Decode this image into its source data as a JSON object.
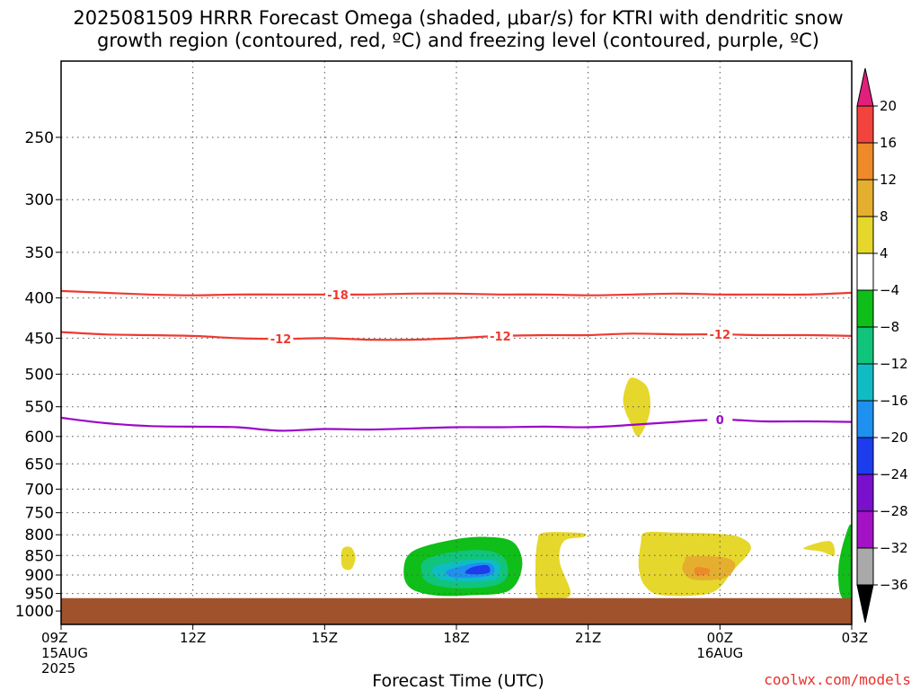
{
  "chart_data": {
    "type": "heatmap",
    "title_line1": "2025081509 HRRR Forecast Omega (shaded, μbar/s) for KTRI with dendritic snow",
    "title_line2": "growth region (contoured, red, ºC) and freezing level (contoured, purple, ºC)",
    "xlabel": "Forecast Time (UTC)",
    "ylabel": "",
    "x_ticks": [
      {
        "hour": 0,
        "label": "09Z",
        "sub": [
          "15AUG",
          "2025"
        ]
      },
      {
        "hour": 3,
        "label": "12Z",
        "sub": []
      },
      {
        "hour": 6,
        "label": "15Z",
        "sub": []
      },
      {
        "hour": 9,
        "label": "18Z",
        "sub": []
      },
      {
        "hour": 12,
        "label": "21Z",
        "sub": []
      },
      {
        "hour": 15,
        "label": "00Z",
        "sub": [
          "16AUG"
        ]
      },
      {
        "hour": 18,
        "label": "03Z",
        "sub": []
      }
    ],
    "xlim": [
      0,
      18
    ],
    "y_ticks": [
      250,
      300,
      350,
      400,
      450,
      500,
      550,
      600,
      650,
      700,
      750,
      800,
      850,
      900,
      950,
      1000
    ],
    "ylim": [
      200,
      1040
    ],
    "y_scale": "log-pressure",
    "grid": true,
    "colorbar": {
      "units": "μbar/s",
      "levels": [
        "20",
        "16",
        "12",
        "8",
        "4",
        "−4",
        "−8",
        "−12",
        "−16",
        "−20",
        "−24",
        "−28",
        "−32",
        "−36"
      ],
      "colors": [
        "#e0207c",
        "#f2443c",
        "#ee8a28",
        "#e6ae2e",
        "#e6d72c",
        "#ffffff",
        "#0fbe18",
        "#10c47c",
        "#10bcc4",
        "#1e90f0",
        "#1c3cee",
        "#7a0fcc",
        "#a412c6",
        "#a9a9a9",
        "#000000"
      ]
    },
    "contours": [
      {
        "kind": "dendritic",
        "label": "-18",
        "color": "#ee3a30",
        "points": [
          [
            0,
            392
          ],
          [
            1,
            394
          ],
          [
            2,
            396
          ],
          [
            3,
            397
          ],
          [
            4,
            396
          ],
          [
            5,
            396
          ],
          [
            6,
            396
          ],
          [
            7,
            396
          ],
          [
            8,
            395
          ],
          [
            9,
            395
          ],
          [
            10,
            396
          ],
          [
            11,
            396
          ],
          [
            12,
            397
          ],
          [
            13,
            396
          ],
          [
            14,
            395
          ],
          [
            15,
            396
          ],
          [
            16,
            396
          ],
          [
            17,
            396
          ],
          [
            18,
            394
          ]
        ],
        "label_hours": [
          6.3
        ]
      },
      {
        "kind": "dendritic",
        "label": "-12",
        "color": "#ee3a30",
        "points": [
          [
            0,
            442
          ],
          [
            1,
            445
          ],
          [
            2,
            446
          ],
          [
            3,
            447
          ],
          [
            4,
            450
          ],
          [
            5,
            451
          ],
          [
            6,
            450
          ],
          [
            7,
            452
          ],
          [
            8,
            452
          ],
          [
            9,
            450
          ],
          [
            10,
            447
          ],
          [
            11,
            446
          ],
          [
            12,
            446
          ],
          [
            13,
            444
          ],
          [
            14,
            445
          ],
          [
            15,
            445
          ],
          [
            16,
            446
          ],
          [
            17,
            446
          ],
          [
            18,
            447
          ]
        ],
        "label_hours": [
          5.0,
          10.0,
          15.0
        ]
      },
      {
        "kind": "freezing",
        "label": "0",
        "color": "#9b08c8",
        "points": [
          [
            0,
            568
          ],
          [
            1,
            577
          ],
          [
            2,
            582
          ],
          [
            3,
            583
          ],
          [
            4,
            584
          ],
          [
            5,
            590
          ],
          [
            6,
            587
          ],
          [
            7,
            588
          ],
          [
            8,
            586
          ],
          [
            9,
            584
          ],
          [
            10,
            584
          ],
          [
            11,
            583
          ],
          [
            12,
            584
          ],
          [
            13,
            580
          ],
          [
            14,
            575
          ],
          [
            15,
            571
          ],
          [
            16,
            574
          ],
          [
            17,
            574
          ],
          [
            18,
            575
          ]
        ],
        "label_hours": [
          15.0
        ]
      }
    ],
    "shaded_regions": [
      {
        "value": "4 to 8",
        "color": "#e6d72c",
        "points": [
          [
            13.0,
            505
          ],
          [
            12.85,
            520
          ],
          [
            12.8,
            545
          ],
          [
            12.95,
            575
          ],
          [
            13.15,
            600
          ],
          [
            13.4,
            560
          ],
          [
            13.35,
            520
          ]
        ]
      },
      {
        "value": "4 to 8",
        "color": "#e6d72c",
        "points": [
          [
            6.4,
            835
          ],
          [
            6.4,
            878
          ],
          [
            6.6,
            885
          ],
          [
            6.7,
            855
          ],
          [
            6.6,
            830
          ]
        ]
      },
      {
        "value": "4 to 8",
        "color": "#e6d72c",
        "points": [
          [
            11.0,
            795
          ],
          [
            11.85,
            796
          ],
          [
            11.9,
            805
          ],
          [
            11.45,
            815
          ],
          [
            11.35,
            865
          ],
          [
            11.6,
            950
          ],
          [
            11.25,
            964
          ],
          [
            10.85,
            960
          ],
          [
            10.8,
            880
          ],
          [
            10.85,
            815
          ]
        ]
      },
      {
        "value": "4 to 8",
        "color": "#e6d72c",
        "points": [
          [
            13.3,
            795
          ],
          [
            14.0,
            795
          ],
          [
            15.0,
            798
          ],
          [
            15.5,
            808
          ],
          [
            15.7,
            835
          ],
          [
            15.3,
            888
          ],
          [
            14.8,
            948
          ],
          [
            13.7,
            955
          ],
          [
            13.3,
            930
          ],
          [
            13.15,
            880
          ],
          [
            13.2,
            820
          ]
        ]
      },
      {
        "value": "8 to 12",
        "color": "#e6ae2e",
        "points": [
          [
            14.3,
            852
          ],
          [
            15.1,
            855
          ],
          [
            15.35,
            875
          ],
          [
            15.1,
            908
          ],
          [
            14.4,
            912
          ],
          [
            14.15,
            888
          ],
          [
            14.2,
            862
          ]
        ]
      },
      {
        "value": "12 to 16",
        "color": "#ee8a28",
        "points": [
          [
            14.45,
            880
          ],
          [
            14.75,
            884
          ],
          [
            14.72,
            898
          ],
          [
            14.45,
            900
          ]
        ]
      },
      {
        "value": "4 to 8",
        "color": "#e6d72c",
        "points": [
          [
            17.5,
            815
          ],
          [
            17.6,
            850
          ],
          [
            17.3,
            840
          ],
          [
            16.9,
            832
          ]
        ]
      },
      {
        "value": "-4 to -8",
        "color": "#0fbe18",
        "points": [
          [
            8.0,
            840
          ],
          [
            8.9,
            812
          ],
          [
            9.7,
            805
          ],
          [
            10.3,
            818
          ],
          [
            10.5,
            875
          ],
          [
            10.2,
            942
          ],
          [
            9.3,
            955
          ],
          [
            8.5,
            955
          ],
          [
            7.95,
            935
          ],
          [
            7.8,
            890
          ]
        ]
      },
      {
        "value": "-8 to -12",
        "color": "#10c47c",
        "points": [
          [
            8.3,
            860
          ],
          [
            9.0,
            840
          ],
          [
            9.7,
            838
          ],
          [
            10.1,
            858
          ],
          [
            10.15,
            905
          ],
          [
            9.8,
            930
          ],
          [
            8.9,
            935
          ],
          [
            8.35,
            920
          ],
          [
            8.2,
            890
          ]
        ]
      },
      {
        "value": "-12 to -16",
        "color": "#10bcc4",
        "points": [
          [
            8.5,
            878
          ],
          [
            9.2,
            862
          ],
          [
            9.85,
            862
          ],
          [
            10.0,
            885
          ],
          [
            9.85,
            912
          ],
          [
            9.0,
            917
          ],
          [
            8.55,
            905
          ]
        ]
      },
      {
        "value": "-16 to -20",
        "color": "#1e90f0",
        "points": [
          [
            8.8,
            888
          ],
          [
            9.4,
            870
          ],
          [
            9.8,
            872
          ],
          [
            9.85,
            895
          ],
          [
            9.6,
            905
          ],
          [
            9.0,
            907
          ],
          [
            8.8,
            900
          ]
        ]
      },
      {
        "value": "-20 to -24",
        "color": "#1c3cee",
        "points": [
          [
            9.35,
            880
          ],
          [
            9.7,
            875
          ],
          [
            9.75,
            893
          ],
          [
            9.5,
            898
          ],
          [
            9.2,
            895
          ]
        ]
      },
      {
        "value": "-4 to -8",
        "color": "#0fbe18",
        "points": [
          [
            17.85,
            805
          ],
          [
            18.0,
            785
          ],
          [
            18.0,
            962
          ],
          [
            17.75,
            955
          ],
          [
            17.7,
            880
          ]
        ]
      }
    ],
    "surface": {
      "color": "#a0522d",
      "top_hpa": 963
    }
  },
  "credit": "coolwx.com/models"
}
